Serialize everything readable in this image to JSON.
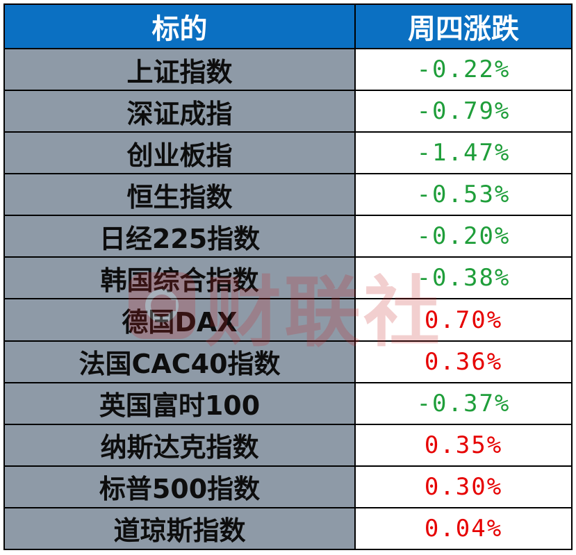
{
  "header": {
    "name_label": "标的",
    "change_label": "周四涨跌"
  },
  "colors": {
    "header_bg": "#0b70c2",
    "name_bg": "#8e9aa7",
    "positive": "#e60000",
    "negative": "#1f9e3a"
  },
  "rows": [
    {
      "name": "上证指数",
      "change": "-0.22%",
      "direction": "down"
    },
    {
      "name": "深证成指",
      "change": "-0.79%",
      "direction": "down"
    },
    {
      "name": "创业板指",
      "change": "-1.47%",
      "direction": "down"
    },
    {
      "name": "恒生指数",
      "change": "-0.53%",
      "direction": "down"
    },
    {
      "name": "日经225指数",
      "change": "-0.20%",
      "direction": "down"
    },
    {
      "name": "韩国综合指数",
      "change": "-0.38%",
      "direction": "down"
    },
    {
      "name": "德国DAX",
      "change": "0.70%",
      "direction": "up"
    },
    {
      "name": "法国CAC40指数",
      "change": "0.36%",
      "direction": "up"
    },
    {
      "name": "英国富时100",
      "change": "-0.37%",
      "direction": "down"
    },
    {
      "name": "纳斯达克指数",
      "change": "0.35%",
      "direction": "up"
    },
    {
      "name": "标普500指数",
      "change": "0.30%",
      "direction": "up"
    },
    {
      "name": "道琼斯指数",
      "change": "0.04%",
      "direction": "up"
    }
  ],
  "watermark": {
    "text": "财联社",
    "icon": "cls-logo-icon"
  }
}
